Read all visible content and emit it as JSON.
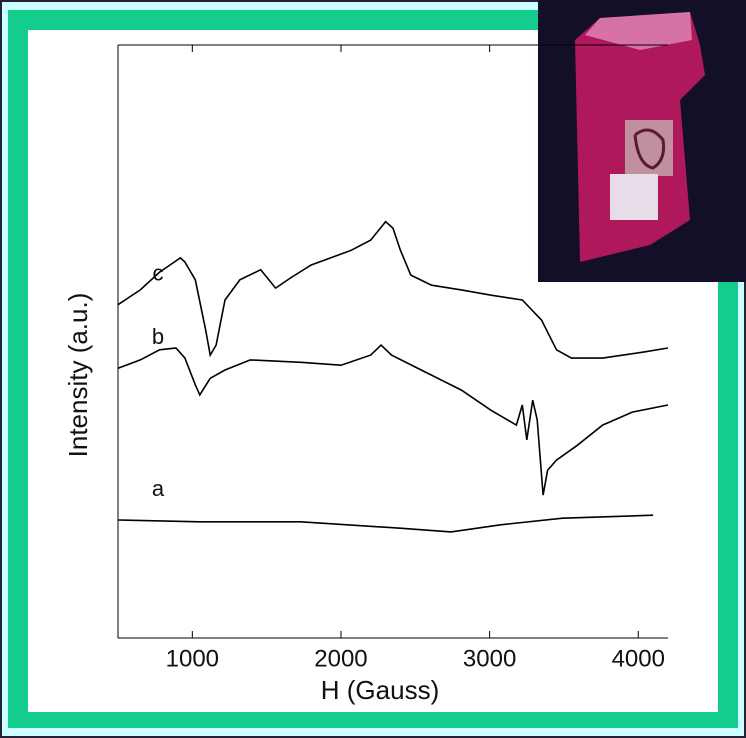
{
  "chart_data": {
    "type": "line",
    "xlabel": "H (Gauss)",
    "ylabel": "Intensity (a.u.)",
    "xlim": [
      500,
      4200
    ],
    "ylim": [
      0,
      100
    ],
    "xticks": [
      1000,
      2000,
      3000,
      4000
    ],
    "series": [
      {
        "name": "a",
        "color": "#000000",
        "x": [
          500,
          1050,
          1730,
          2410,
          2740,
          3080,
          3490,
          4100
        ],
        "values": [
          19.9,
          19.6,
          19.6,
          18.5,
          17.9,
          19.1,
          20.2,
          20.7
        ]
      },
      {
        "name": "b",
        "color": "#000000",
        "x": [
          500,
          650,
          780,
          890,
          950,
          1020,
          1050,
          1120,
          1220,
          1390,
          1730,
          2000,
          2200,
          2270,
          2340,
          2540,
          2810,
          3010,
          3180,
          3220,
          3250,
          3290,
          3320,
          3360,
          3390,
          3450,
          3590,
          3760,
          3960,
          4200
        ],
        "values": [
          45.5,
          46.9,
          48.6,
          48.9,
          47.2,
          42.7,
          41.0,
          43.8,
          45.2,
          46.9,
          46.5,
          46.0,
          47.7,
          49.4,
          47.7,
          45.2,
          41.8,
          38.4,
          35.9,
          39.3,
          33.4,
          40.1,
          36.8,
          24.1,
          28.3,
          30.0,
          32.5,
          35.9,
          38.1,
          39.3
        ]
      },
      {
        "name": "c",
        "color": "#000000",
        "x": [
          500,
          650,
          780,
          920,
          950,
          1020,
          1090,
          1120,
          1160,
          1220,
          1320,
          1460,
          1560,
          1660,
          1800,
          1930,
          2070,
          2200,
          2300,
          2350,
          2400,
          2470,
          2610,
          2810,
          3010,
          3220,
          3350,
          3450,
          3550,
          3760,
          4030,
          4200
        ],
        "values": [
          56.2,
          58.7,
          61.7,
          64.1,
          63.4,
          60.4,
          51.9,
          47.7,
          49.4,
          57.0,
          60.4,
          62.1,
          59.0,
          60.7,
          62.9,
          64.1,
          65.4,
          67.1,
          70.2,
          69.1,
          65.4,
          61.2,
          59.5,
          58.7,
          57.8,
          57.0,
          53.6,
          48.6,
          47.2,
          47.2,
          48.2,
          48.9
        ]
      }
    ]
  }
}
